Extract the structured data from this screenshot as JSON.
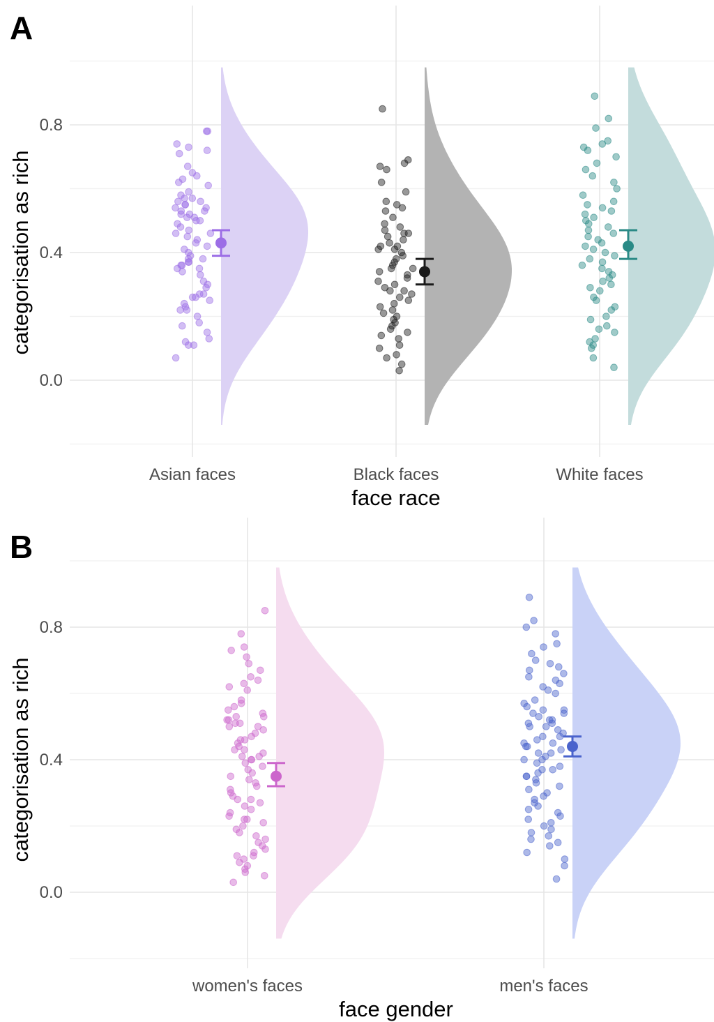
{
  "chart_data": [
    {
      "type": "raincloud",
      "panel": "A",
      "xlabel": "face race",
      "ylabel": "categorisation as rich",
      "ylim": [
        -0.2,
        1.0
      ],
      "yticks": [
        0.0,
        0.4,
        0.8
      ],
      "ytick_labels": [
        "0.0",
        "0.4",
        "0.8"
      ],
      "grid": true,
      "categories": [
        "Asian faces",
        "Black faces",
        "White faces"
      ],
      "colors": [
        "#9c6ee6",
        "#1a1a1a",
        "#2a8a86"
      ],
      "fill_colors": [
        "#dcd2f5",
        "#b3b3b3",
        "#c3dcdc"
      ],
      "means": [
        0.43,
        0.34,
        0.42
      ],
      "ci_low": [
        0.39,
        0.3,
        0.38
      ],
      "ci_high": [
        0.47,
        0.38,
        0.47
      ],
      "series": [
        {
          "category": "Asian faces",
          "points": [
            0.78,
            0.78,
            0.74,
            0.73,
            0.72,
            0.71,
            0.67,
            0.65,
            0.64,
            0.63,
            0.62,
            0.61,
            0.59,
            0.58,
            0.57,
            0.57,
            0.56,
            0.56,
            0.55,
            0.55,
            0.54,
            0.54,
            0.53,
            0.53,
            0.52,
            0.52,
            0.51,
            0.51,
            0.5,
            0.5,
            0.49,
            0.48,
            0.47,
            0.46,
            0.46,
            0.45,
            0.44,
            0.43,
            0.42,
            0.41,
            0.4,
            0.39,
            0.38,
            0.38,
            0.37,
            0.37,
            0.36,
            0.36,
            0.35,
            0.35,
            0.34,
            0.33,
            0.31,
            0.3,
            0.29,
            0.27,
            0.27,
            0.26,
            0.26,
            0.25,
            0.24,
            0.23,
            0.22,
            0.22,
            0.2,
            0.18,
            0.17,
            0.15,
            0.13,
            0.12,
            0.11,
            0.11,
            0.07
          ]
        },
        {
          "category": "Black faces",
          "points": [
            0.85,
            0.69,
            0.68,
            0.67,
            0.66,
            0.62,
            0.59,
            0.56,
            0.55,
            0.54,
            0.53,
            0.51,
            0.49,
            0.48,
            0.47,
            0.46,
            0.46,
            0.45,
            0.44,
            0.43,
            0.42,
            0.42,
            0.41,
            0.41,
            0.4,
            0.39,
            0.38,
            0.37,
            0.36,
            0.35,
            0.35,
            0.34,
            0.33,
            0.32,
            0.31,
            0.3,
            0.29,
            0.28,
            0.28,
            0.27,
            0.26,
            0.25,
            0.24,
            0.23,
            0.22,
            0.21,
            0.2,
            0.19,
            0.18,
            0.17,
            0.16,
            0.15,
            0.14,
            0.13,
            0.11,
            0.1,
            0.08,
            0.07,
            0.05,
            0.03
          ]
        },
        {
          "category": "White faces",
          "points": [
            0.89,
            0.82,
            0.79,
            0.75,
            0.74,
            0.73,
            0.72,
            0.7,
            0.68,
            0.66,
            0.64,
            0.62,
            0.6,
            0.58,
            0.56,
            0.55,
            0.54,
            0.53,
            0.52,
            0.51,
            0.5,
            0.49,
            0.48,
            0.47,
            0.46,
            0.45,
            0.44,
            0.43,
            0.42,
            0.41,
            0.4,
            0.39,
            0.38,
            0.37,
            0.36,
            0.35,
            0.34,
            0.33,
            0.32,
            0.31,
            0.3,
            0.29,
            0.28,
            0.26,
            0.25,
            0.23,
            0.22,
            0.2,
            0.19,
            0.17,
            0.16,
            0.15,
            0.13,
            0.12,
            0.11,
            0.1,
            0.07,
            0.04
          ]
        }
      ]
    },
    {
      "type": "raincloud",
      "panel": "B",
      "xlabel": "face gender",
      "ylabel": "categorisation as rich",
      "ylim": [
        -0.2,
        1.0
      ],
      "yticks": [
        0.0,
        0.4,
        0.8
      ],
      "ytick_labels": [
        "0.0",
        "0.4",
        "0.8"
      ],
      "grid": true,
      "categories": [
        "women's faces",
        "men's faces"
      ],
      "colors": [
        "#cc66cc",
        "#4a63cc"
      ],
      "fill_colors": [
        "#f5dcef",
        "#c9d2f7"
      ],
      "means": [
        0.35,
        0.44
      ],
      "ci_low": [
        0.32,
        0.41
      ],
      "ci_high": [
        0.39,
        0.47
      ],
      "series": [
        {
          "category": "women's faces",
          "points": [
            0.85,
            0.78,
            0.74,
            0.73,
            0.71,
            0.69,
            0.67,
            0.65,
            0.64,
            0.63,
            0.62,
            0.61,
            0.58,
            0.57,
            0.56,
            0.55,
            0.54,
            0.53,
            0.53,
            0.52,
            0.52,
            0.51,
            0.51,
            0.5,
            0.5,
            0.49,
            0.48,
            0.47,
            0.46,
            0.46,
            0.45,
            0.44,
            0.43,
            0.43,
            0.42,
            0.41,
            0.41,
            0.4,
            0.4,
            0.39,
            0.38,
            0.37,
            0.36,
            0.35,
            0.34,
            0.33,
            0.32,
            0.31,
            0.3,
            0.29,
            0.28,
            0.28,
            0.27,
            0.26,
            0.25,
            0.24,
            0.23,
            0.22,
            0.22,
            0.21,
            0.2,
            0.19,
            0.18,
            0.17,
            0.16,
            0.15,
            0.14,
            0.13,
            0.12,
            0.11,
            0.11,
            0.1,
            0.09,
            0.08,
            0.07,
            0.06,
            0.05,
            0.03
          ]
        },
        {
          "category": "men's faces",
          "points": [
            0.89,
            0.82,
            0.8,
            0.78,
            0.75,
            0.74,
            0.72,
            0.7,
            0.69,
            0.68,
            0.67,
            0.66,
            0.65,
            0.64,
            0.63,
            0.62,
            0.61,
            0.6,
            0.58,
            0.57,
            0.56,
            0.55,
            0.55,
            0.54,
            0.54,
            0.53,
            0.52,
            0.52,
            0.51,
            0.51,
            0.5,
            0.5,
            0.49,
            0.48,
            0.47,
            0.47,
            0.46,
            0.45,
            0.45,
            0.44,
            0.44,
            0.43,
            0.42,
            0.42,
            0.41,
            0.4,
            0.4,
            0.39,
            0.38,
            0.37,
            0.37,
            0.36,
            0.35,
            0.35,
            0.34,
            0.33,
            0.32,
            0.31,
            0.3,
            0.29,
            0.28,
            0.27,
            0.26,
            0.25,
            0.24,
            0.23,
            0.22,
            0.21,
            0.2,
            0.19,
            0.18,
            0.17,
            0.16,
            0.15,
            0.14,
            0.12,
            0.1,
            0.08,
            0.04
          ]
        }
      ]
    }
  ]
}
